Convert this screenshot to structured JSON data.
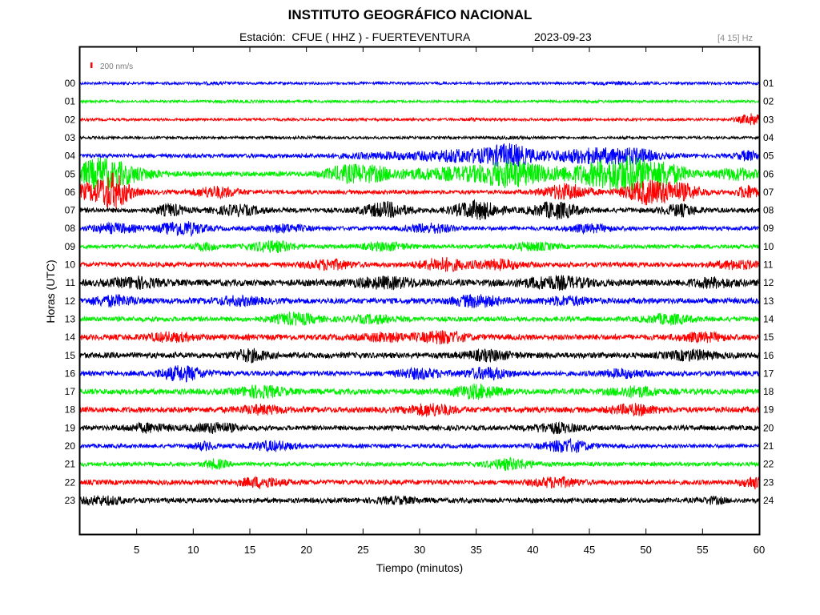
{
  "header": {
    "title": "INSTITUTO GEOGRÁFICO NACIONAL",
    "station_line": "Estación:  CFUE ( HHZ ) - FUERTEVENTURA",
    "date": "2023-09-23",
    "filter": "[4 15] Hz"
  },
  "chart_data": {
    "type": "line",
    "plot_kind": "helicorder",
    "xlabel": "Tiempo (minutos)",
    "ylabel": "Horas (UTC)",
    "xlim": [
      0,
      60
    ],
    "x_ticks": [
      5,
      10,
      15,
      20,
      25,
      30,
      35,
      40,
      45,
      50,
      55,
      60
    ],
    "scale_label": "200 nm/s",
    "scale_color": "#ff0000",
    "grid": false,
    "left_hour_labels": [
      "00",
      "01",
      "02",
      "03",
      "04",
      "05",
      "06",
      "07",
      "08",
      "09",
      "10",
      "11",
      "12",
      "13",
      "14",
      "15",
      "16",
      "17",
      "18",
      "19",
      "20",
      "21",
      "22",
      "23"
    ],
    "right_hour_labels": [
      "01",
      "02",
      "03",
      "04",
      "05",
      "06",
      "07",
      "08",
      "09",
      "10",
      "11",
      "12",
      "13",
      "14",
      "15",
      "16",
      "17",
      "18",
      "19",
      "20",
      "21",
      "22",
      "23",
      "24"
    ],
    "trace_colors": [
      "#0000ff",
      "#00ee00",
      "#ff0000",
      "#000000"
    ],
    "traces": [
      {
        "hour": "00",
        "base": 1.6,
        "events": [
          [
            48,
            0.8,
            3
          ],
          [
            12,
            0.6,
            2
          ]
        ]
      },
      {
        "hour": "01",
        "base": 1.5,
        "events": [
          [
            14,
            0.6,
            2
          ],
          [
            45,
            0.5,
            2
          ]
        ]
      },
      {
        "hour": "02",
        "base": 1.6,
        "events": [
          [
            35,
            1.0,
            1
          ],
          [
            59.4,
            6.5,
            1.2
          ]
        ]
      },
      {
        "hour": "03",
        "base": 1.6,
        "events": [
          [
            38,
            0.6,
            2
          ],
          [
            20,
            0.4,
            2
          ]
        ]
      },
      {
        "hour": "04",
        "base": 2.5,
        "events": [
          [
            28,
            3,
            5
          ],
          [
            34,
            6,
            3
          ],
          [
            38,
            12,
            2
          ],
          [
            45,
            8,
            4
          ],
          [
            49,
            6,
            2
          ],
          [
            59,
            5,
            1
          ]
        ]
      },
      {
        "hour": "05",
        "base": 3,
        "events": [
          [
            1.5,
            12,
            2
          ],
          [
            3.5,
            9,
            3
          ],
          [
            23.5,
            8,
            2
          ],
          [
            26,
            6,
            2
          ],
          [
            32,
            6,
            4
          ],
          [
            38,
            14,
            3
          ],
          [
            45,
            8,
            4
          ],
          [
            48.5,
            16,
            3
          ],
          [
            52,
            8,
            2
          ],
          [
            58,
            6,
            2
          ]
        ]
      },
      {
        "hour": "06",
        "base": 2.5,
        "events": [
          [
            1.5,
            10,
            3
          ],
          [
            3,
            14,
            1.2
          ],
          [
            12,
            6,
            2
          ],
          [
            43,
            9,
            2
          ],
          [
            50,
            13,
            2
          ],
          [
            53,
            9,
            2
          ],
          [
            59,
            7,
            1
          ]
        ]
      },
      {
        "hour": "07",
        "base": 3,
        "events": [
          [
            8,
            6,
            1.2
          ],
          [
            14,
            5,
            2
          ],
          [
            27,
            8,
            2
          ],
          [
            35,
            10,
            2
          ],
          [
            42,
            9,
            2
          ],
          [
            53,
            6,
            1.5
          ]
        ]
      },
      {
        "hour": "08",
        "base": 2.5,
        "events": [
          [
            3,
            5,
            2
          ],
          [
            9,
            8,
            2
          ],
          [
            18,
            4,
            2
          ],
          [
            31,
            5,
            2
          ],
          [
            45,
            4,
            2
          ]
        ]
      },
      {
        "hour": "09",
        "base": 2.5,
        "events": [
          [
            11,
            4,
            1
          ],
          [
            17,
            6,
            2
          ],
          [
            27,
            4,
            2
          ],
          [
            40,
            4,
            2
          ]
        ]
      },
      {
        "hour": "10",
        "base": 3,
        "events": [
          [
            22,
            5,
            2
          ],
          [
            32,
            7,
            2
          ],
          [
            37,
            5,
            2
          ],
          [
            58,
            4,
            2
          ]
        ]
      },
      {
        "hour": "11",
        "base": 4,
        "events": [
          [
            5,
            5,
            2
          ],
          [
            27,
            5,
            3
          ],
          [
            42,
            6,
            3
          ],
          [
            56,
            4,
            2
          ]
        ]
      },
      {
        "hour": "12",
        "base": 3.5,
        "events": [
          [
            3,
            5,
            2
          ],
          [
            14,
            4,
            2
          ],
          [
            35,
            6,
            2
          ],
          [
            43,
            4,
            2
          ]
        ]
      },
      {
        "hour": "13",
        "base": 3,
        "events": [
          [
            19,
            6,
            2
          ],
          [
            26,
            4,
            2
          ],
          [
            52,
            5,
            2
          ]
        ]
      },
      {
        "hour": "14",
        "base": 3.5,
        "events": [
          [
            8,
            4,
            2
          ],
          [
            27,
            4,
            2
          ],
          [
            32,
            6,
            2
          ],
          [
            55,
            4,
            2
          ]
        ]
      },
      {
        "hour": "15",
        "base": 3.5,
        "events": [
          [
            15,
            6,
            1.5
          ],
          [
            36,
            5,
            2
          ],
          [
            54,
            5,
            2
          ]
        ]
      },
      {
        "hour": "16",
        "base": 3,
        "events": [
          [
            9,
            8,
            2
          ],
          [
            30,
            5,
            2
          ],
          [
            36,
            6,
            2
          ],
          [
            48,
            4,
            2
          ]
        ]
      },
      {
        "hour": "17",
        "base": 3.5,
        "events": [
          [
            16,
            6,
            2
          ],
          [
            35,
            7,
            2
          ],
          [
            49,
            5,
            2
          ]
        ]
      },
      {
        "hour": "18",
        "base": 3.5,
        "events": [
          [
            16,
            4,
            2
          ],
          [
            31,
            6,
            2
          ],
          [
            49,
            5,
            2
          ]
        ]
      },
      {
        "hour": "19",
        "base": 3,
        "events": [
          [
            6,
            4,
            2
          ],
          [
            12,
            5,
            2
          ],
          [
            42,
            5,
            2
          ]
        ]
      },
      {
        "hour": "20",
        "base": 2.5,
        "events": [
          [
            11,
            4,
            1
          ],
          [
            17,
            5,
            2
          ],
          [
            43,
            7,
            2
          ]
        ]
      },
      {
        "hour": "21",
        "base": 2.5,
        "events": [
          [
            12,
            5,
            1
          ],
          [
            38,
            6,
            2
          ]
        ]
      },
      {
        "hour": "22",
        "base": 3,
        "events": [
          [
            16,
            5,
            2
          ],
          [
            42,
            5,
            2
          ],
          [
            59.5,
            6,
            1
          ]
        ]
      },
      {
        "hour": "23",
        "base": 3,
        "events": [
          [
            2,
            4,
            2
          ],
          [
            28,
            3,
            2
          ],
          [
            56,
            3,
            1
          ]
        ]
      }
    ]
  }
}
